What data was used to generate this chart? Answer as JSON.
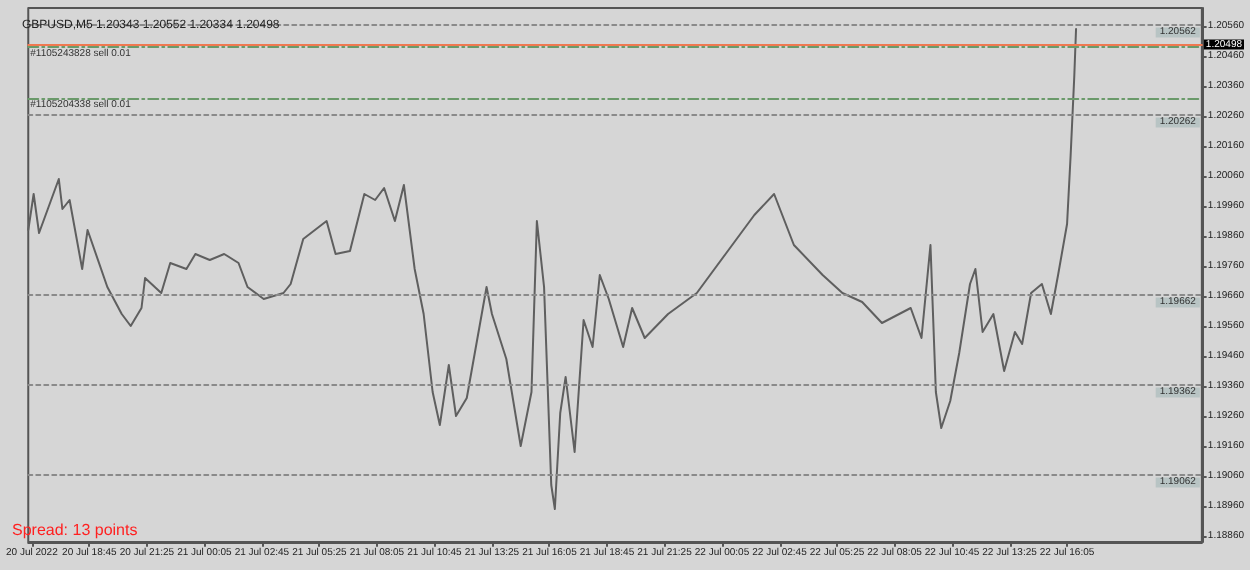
{
  "chart_data": {
    "type": "line",
    "title": "GBPUSD,M5 1.20343 1.20552 1.20334 1.20498",
    "annotations": [
      "Spread: 13 points"
    ],
    "series": [
      {
        "color": "#5f5f5f",
        "x": [
          "2022-07-20T15:55",
          "2022-07-20T16:10",
          "2022-07-20T16:25",
          "2022-07-20T17:20",
          "2022-07-20T17:30",
          "2022-07-20T17:50",
          "2022-07-20T18:25",
          "2022-07-20T18:40",
          "2022-07-20T19:35",
          "2022-07-20T20:15",
          "2022-07-20T20:40",
          "2022-07-20T21:10",
          "2022-07-20T21:20",
          "2022-07-20T22:05",
          "2022-07-20T22:30",
          "2022-07-20T23:15",
          "2022-07-20T23:40",
          "2022-07-21T00:20",
          "2022-07-21T01:00",
          "2022-07-21T01:40",
          "2022-07-21T02:05",
          "2022-07-21T02:50",
          "2022-07-21T03:45",
          "2022-07-21T04:05",
          "2022-07-21T04:40",
          "2022-07-21T05:45",
          "2022-07-21T06:10",
          "2022-07-21T06:50",
          "2022-07-21T07:30",
          "2022-07-21T08:00",
          "2022-07-21T08:25",
          "2022-07-21T08:55",
          "2022-07-21T09:20",
          "2022-07-21T09:50",
          "2022-07-21T10:15",
          "2022-07-21T10:40",
          "2022-07-21T11:00",
          "2022-07-21T11:25",
          "2022-07-21T11:45",
          "2022-07-21T12:15",
          "2022-07-21T13:10",
          "2022-07-21T13:25",
          "2022-07-21T14:05",
          "2022-07-21T14:45",
          "2022-07-21T15:15",
          "2022-07-21T15:30",
          "2022-07-21T15:50",
          "2022-07-21T16:10",
          "2022-07-21T16:20",
          "2022-07-21T16:35",
          "2022-07-21T16:50",
          "2022-07-21T17:15",
          "2022-07-21T17:40",
          "2022-07-21T18:05",
          "2022-07-21T18:25",
          "2022-07-21T18:50",
          "2022-07-21T19:30",
          "2022-07-21T19:55",
          "2022-07-21T20:30",
          "2022-07-21T21:35",
          "2022-07-21T22:55",
          "2022-07-22T00:15",
          "2022-07-22T01:35",
          "2022-07-22T02:30",
          "2022-07-22T03:25",
          "2022-07-22T04:45",
          "2022-07-22T05:40",
          "2022-07-22T06:35",
          "2022-07-22T07:30",
          "2022-07-22T08:50",
          "2022-07-22T09:20",
          "2022-07-22T09:45",
          "2022-07-22T10:00",
          "2022-07-22T10:15",
          "2022-07-22T10:40",
          "2022-07-22T11:05",
          "2022-07-22T11:35",
          "2022-07-22T11:50",
          "2022-07-22T12:10",
          "2022-07-22T12:40",
          "2022-07-22T13:10",
          "2022-07-22T13:40",
          "2022-07-22T14:00",
          "2022-07-22T14:25",
          "2022-07-22T14:55",
          "2022-07-22T15:20",
          "2022-07-22T15:40",
          "2022-07-22T16:05",
          "2022-07-22T16:15",
          "2022-07-22T16:25",
          "2022-07-22T16:30"
        ],
        "values": [
          1.1988,
          1.2,
          1.1987,
          1.2005,
          1.1995,
          1.1998,
          1.1975,
          1.1988,
          1.1969,
          1.196,
          1.1956,
          1.1962,
          1.1972,
          1.1967,
          1.1977,
          1.1975,
          1.198,
          1.1978,
          1.198,
          1.1977,
          1.1969,
          1.1965,
          1.1967,
          1.197,
          1.1985,
          1.1991,
          1.198,
          1.1981,
          1.2,
          1.1998,
          1.2002,
          1.1991,
          1.2003,
          1.1975,
          1.196,
          1.1934,
          1.1923,
          1.1943,
          1.1926,
          1.1932,
          1.1969,
          1.196,
          1.1945,
          1.1916,
          1.1934,
          1.1991,
          1.1969,
          1.1903,
          1.1895,
          1.1927,
          1.1939,
          1.1914,
          1.1958,
          1.1949,
          1.1973,
          1.1965,
          1.1949,
          1.1962,
          1.1952,
          1.196,
          1.1967,
          1.198,
          1.1993,
          1.2,
          1.1983,
          1.1973,
          1.1967,
          1.1964,
          1.1957,
          1.1962,
          1.1952,
          1.1983,
          1.1934,
          1.1922,
          1.1931,
          1.1947,
          1.197,
          1.1975,
          1.1954,
          1.196,
          1.1941,
          1.1954,
          1.195,
          1.1967,
          1.197,
          1.196,
          1.1973,
          1.199,
          1.2013,
          1.2039,
          1.2055
        ]
      }
    ],
    "marker": "none",
    "grid": false,
    "xlim": [
      "2022-07-20T15:55",
      "2022-07-22T22:20"
    ],
    "xticks": [
      {
        "value": "2022-07-20T16:05",
        "label": "20 Jul 2022"
      },
      {
        "value": "2022-07-20T18:45",
        "label": "20 Jul 18:45"
      },
      {
        "value": "2022-07-20T21:25",
        "label": "20 Jul 21:25"
      },
      {
        "value": "2022-07-21T00:05",
        "label": "21 Jul 00:05"
      },
      {
        "value": "2022-07-21T02:45",
        "label": "21 Jul 02:45"
      },
      {
        "value": "2022-07-21T05:25",
        "label": "21 Jul 05:25"
      },
      {
        "value": "2022-07-21T08:05",
        "label": "21 Jul 08:05"
      },
      {
        "value": "2022-07-21T10:45",
        "label": "21 Jul 10:45"
      },
      {
        "value": "2022-07-21T13:25",
        "label": "21 Jul 13:25"
      },
      {
        "value": "2022-07-21T16:05",
        "label": "21 Jul 16:05"
      },
      {
        "value": "2022-07-21T18:45",
        "label": "21 Jul 18:45"
      },
      {
        "value": "2022-07-21T21:25",
        "label": "21 Jul 21:25"
      },
      {
        "value": "2022-07-22T00:05",
        "label": "22 Jul 00:05"
      },
      {
        "value": "2022-07-22T02:45",
        "label": "22 Jul 02:45"
      },
      {
        "value": "2022-07-22T05:25",
        "label": "22 Jul 05:25"
      },
      {
        "value": "2022-07-22T08:05",
        "label": "22 Jul 08:05"
      },
      {
        "value": "2022-07-22T10:45",
        "label": "22 Jul 10:45"
      },
      {
        "value": "2022-07-22T13:25",
        "label": "22 Jul 13:25"
      },
      {
        "value": "2022-07-22T16:05",
        "label": "22 Jul 16:05"
      }
    ],
    "ylim": [
      1.1884,
      1.2062
    ],
    "yticks": [
      {
        "value": 1.1886,
        "label": "1.18860"
      },
      {
        "value": 1.1896,
        "label": "1.18960"
      },
      {
        "value": 1.1906,
        "label": "1.19060"
      },
      {
        "value": 1.1916,
        "label": "1.19160"
      },
      {
        "value": 1.1926,
        "label": "1.19260"
      },
      {
        "value": 1.1936,
        "label": "1.19360"
      },
      {
        "value": 1.1946,
        "label": "1.19460"
      },
      {
        "value": 1.1956,
        "label": "1.19560"
      },
      {
        "value": 1.1966,
        "label": "1.19660"
      },
      {
        "value": 1.1976,
        "label": "1.19760"
      },
      {
        "value": 1.1986,
        "label": "1.19860"
      },
      {
        "value": 1.1996,
        "label": "1.19960"
      },
      {
        "value": 1.2006,
        "label": "1.20060"
      },
      {
        "value": 1.2016,
        "label": "1.20160"
      },
      {
        "value": 1.2026,
        "label": "1.20260"
      },
      {
        "value": 1.2036,
        "label": "1.20360"
      },
      {
        "value": 1.2046,
        "label": "1.20460"
      },
      {
        "value": 1.2056,
        "label": "1.20560"
      }
    ],
    "ref_lines": [
      {
        "axis": "y",
        "value": 1.20498,
        "label": "1.20498",
        "color": "#f07850",
        "line_style": "solid"
      },
      {
        "axis": "y",
        "value": 1.2049,
        "label": "#1105243828 sell 0.01",
        "color": "#6a9a6a",
        "line_style": "dashed"
      },
      {
        "axis": "y",
        "value": 1.2032,
        "label": "#1105204338 sell 0.01",
        "color": "#6a9a6a",
        "line_style": "dashed"
      },
      {
        "axis": "y",
        "value": 1.20562,
        "label": "1.20562",
        "color": "#8a8a8a",
        "line_style": "dotted"
      },
      {
        "axis": "y",
        "value": 1.20262,
        "label": "1.20262",
        "color": "#8a8a8a",
        "line_style": "dotted"
      },
      {
        "axis": "y",
        "value": 1.19662,
        "label": "1.19662",
        "color": "#8a8a8a",
        "line_style": "dotted"
      },
      {
        "axis": "y",
        "value": 1.19362,
        "label": "1.19362",
        "color": "#8a8a8a",
        "line_style": "dotted"
      },
      {
        "axis": "y",
        "value": 1.19062,
        "label": "1.19062",
        "color": "#8a8a8a",
        "line_style": "dotted"
      }
    ]
  }
}
